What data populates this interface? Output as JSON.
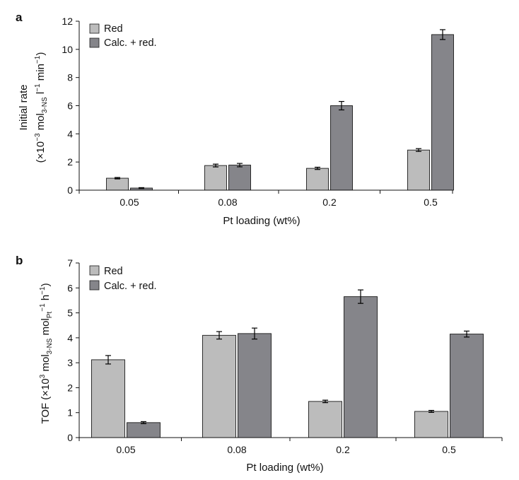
{
  "colors": {
    "red": "#bcbcbc",
    "calc": "#85858a",
    "stroke": "#1a1a1a",
    "axis": "#111111"
  },
  "chart_data": [
    {
      "panel": "a",
      "type": "bar",
      "categories": [
        "0.05",
        "0.08",
        "0.2",
        "0.5"
      ],
      "series": [
        {
          "name": "Red",
          "values": [
            0.85,
            1.75,
            1.55,
            2.85
          ],
          "errors": [
            0.05,
            0.1,
            0.08,
            0.1
          ]
        },
        {
          "name": "Calc. + red.",
          "values": [
            0.15,
            1.78,
            6.0,
            11.05
          ],
          "errors": [
            0.03,
            0.12,
            0.3,
            0.35
          ]
        }
      ],
      "xlabel": "Pt loading (wt%)",
      "ylabel_line1": "Initial rate",
      "ylabel_line2": {
        "open": "(×10",
        "exp": "−3",
        "mid": " mol",
        "sub": "3-NS",
        "l": " l",
        "lexp": "−1",
        "min": " min",
        "minexp": "−1",
        "close": ")"
      },
      "ylim": [
        0,
        12
      ],
      "yticks": [
        "0",
        "2",
        "4",
        "6",
        "8",
        "10",
        "12"
      ],
      "legend": [
        "Red",
        "Calc. + red."
      ],
      "legend_position": "top-left",
      "grid": false
    },
    {
      "panel": "b",
      "type": "bar",
      "categories": [
        "0.05",
        "0.08",
        "0.2",
        "0.5"
      ],
      "series": [
        {
          "name": "Red",
          "values": [
            3.12,
            4.1,
            1.45,
            1.05
          ],
          "errors": [
            0.17,
            0.15,
            0.05,
            0.04
          ]
        },
        {
          "name": "Calc. + red.",
          "values": [
            0.6,
            4.17,
            5.65,
            4.15
          ],
          "errors": [
            0.04,
            0.22,
            0.27,
            0.12
          ]
        }
      ],
      "xlabel": "Pt loading (wt%)",
      "ylabel": {
        "open": "TOF (×10",
        "exp": "3",
        "mid": " mol",
        "sub": "3-NS",
        "mol2": " mol",
        "sub2": "Pt",
        "exp2": "−1",
        "h": " h",
        "hexp": "−1",
        "close": ")"
      },
      "ylim": [
        0,
        7
      ],
      "yticks": [
        "0",
        "1",
        "2",
        "3",
        "4",
        "5",
        "6",
        "7"
      ],
      "legend": [
        "Red",
        "Calc. + red."
      ],
      "legend_position": "top-left",
      "grid": false
    }
  ]
}
